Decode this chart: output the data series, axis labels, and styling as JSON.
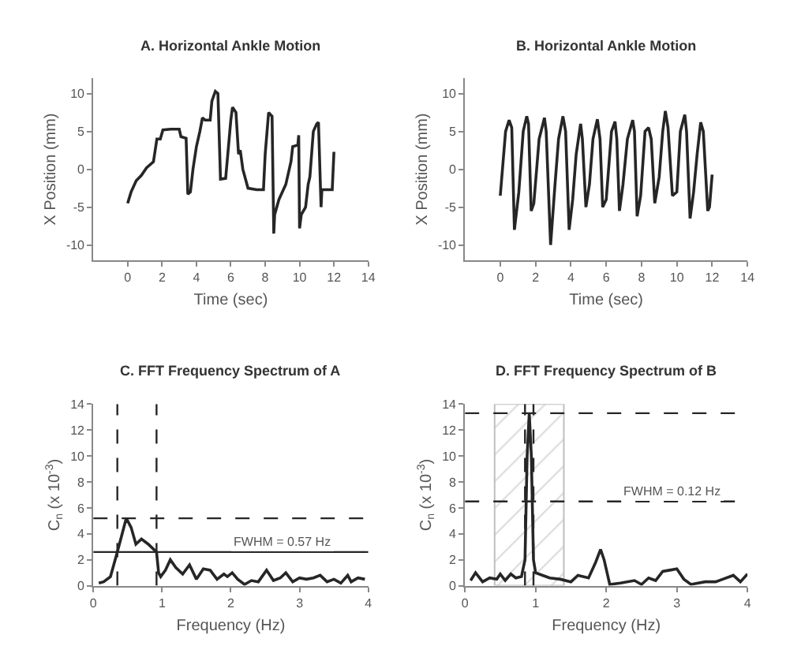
{
  "chart_data": [
    {
      "type": "line",
      "title": "A. Horizontal Ankle Motion",
      "xlabel": "Time (sec)",
      "ylabel": "X Position (mm)",
      "series": [
        {
          "color": "#262626",
          "x": [
            0,
            0.2,
            0.5,
            0.8,
            1.1,
            1.5,
            1.7,
            1.9,
            2.05,
            2.5,
            3.0,
            3.1,
            3.4,
            3.5,
            3.65,
            3.8,
            4.0,
            4.2,
            4.35,
            4.5,
            4.8,
            4.9,
            5.1,
            5.25,
            5.4,
            5.7,
            6.0,
            6.1,
            6.3,
            6.45,
            6.55,
            6.7,
            7.0,
            7.5,
            7.9,
            8.0,
            8.2,
            8.4,
            8.5,
            8.55,
            8.8,
            9.2,
            9.5,
            9.6,
            9.9,
            9.95,
            10.0,
            10.1,
            10.35,
            10.5,
            10.6,
            10.8,
            11.0,
            11.1,
            11.25,
            11.3,
            11.9,
            12.0
          ],
          "values": [
            -4.5,
            -3,
            -1.5,
            -0.8,
            0.2,
            1,
            4,
            4,
            5.2,
            5.3,
            5.3,
            4.3,
            4.1,
            -3.3,
            -3,
            0,
            3,
            5,
            6.8,
            6.5,
            6.5,
            9,
            10.3,
            10,
            -1.3,
            -1.2,
            6.5,
            8.2,
            7.5,
            2,
            2.5,
            0,
            -2.5,
            -2.7,
            -2.7,
            2,
            7.5,
            7,
            -8.5,
            -6,
            -4,
            -2,
            1,
            3,
            3.2,
            4.5,
            -7.8,
            -6,
            -5,
            -2,
            -1,
            5,
            6,
            6.2,
            -5,
            -2.7,
            -2.7,
            2.3
          ]
        }
      ],
      "xlim": [
        -2,
        14
      ],
      "xticks": [
        0,
        2,
        4,
        6,
        8,
        10,
        12,
        14
      ],
      "ylim": [
        -12,
        12
      ],
      "yticks": [
        -10,
        -5,
        0,
        5,
        10
      ]
    },
    {
      "type": "line",
      "title": "B. Horizontal Ankle Motion",
      "xlabel": "Time (sec)",
      "ylabel": "X Position (mm)",
      "series": [
        {
          "color": "#262626",
          "x": [
            0,
            0.3,
            0.5,
            0.65,
            0.8,
            1.05,
            1.3,
            1.5,
            1.6,
            1.75,
            1.9,
            2.2,
            2.5,
            2.6,
            2.85,
            3.1,
            3.3,
            3.55,
            3.7,
            3.9,
            4.1,
            4.3,
            4.55,
            4.65,
            4.85,
            5.05,
            5.25,
            5.5,
            5.65,
            5.8,
            6.0,
            6.3,
            6.5,
            6.6,
            6.75,
            6.95,
            7.2,
            7.5,
            7.6,
            7.75,
            7.95,
            8.2,
            8.4,
            8.55,
            8.75,
            9.0,
            9.2,
            9.35,
            9.5,
            9.75,
            10.0,
            10.2,
            10.45,
            10.55,
            10.75,
            10.95,
            11.15,
            11.35,
            11.5,
            11.75,
            11.85,
            12.0
          ],
          "values": [
            -3.5,
            5,
            6.5,
            5.5,
            -8,
            -3,
            5,
            7,
            6,
            -5.5,
            -4.5,
            4,
            6.8,
            5,
            -10,
            -2,
            4,
            7,
            5,
            -8,
            -4,
            2,
            6,
            4,
            -5,
            -2,
            4,
            6.6,
            4,
            -5,
            -4,
            5,
            6.3,
            4,
            -5.5,
            -2,
            4,
            6.5,
            5,
            -6.2,
            -3.5,
            5,
            5.5,
            4,
            -4.5,
            -1,
            5,
            7.7,
            5.5,
            -3.5,
            -3,
            5,
            7.2,
            5,
            -6.5,
            -3,
            2,
            6.2,
            5,
            -5.5,
            -5,
            -0.7
          ]
        }
      ],
      "xlim": [
        -2,
        14
      ],
      "xticks": [
        0,
        2,
        4,
        6,
        8,
        10,
        12,
        14
      ],
      "ylim": [
        -12,
        12
      ],
      "yticks": [
        -10,
        -5,
        0,
        5,
        10
      ]
    },
    {
      "type": "line",
      "title": "C. FFT Frequency Spectrum of A",
      "xlabel": "Frequency (Hz)",
      "ylabel": "C$_{n}$ (x 10$^{-3}$)",
      "series": [
        {
          "color": "#262626",
          "x": [
            0.08,
            0.15,
            0.25,
            0.35,
            0.43,
            0.48,
            0.55,
            0.62,
            0.7,
            0.8,
            0.92,
            0.95,
            0.98,
            1.05,
            1.12,
            1.2,
            1.3,
            1.4,
            1.5,
            1.6,
            1.7,
            1.8,
            1.9,
            1.95,
            2.02,
            2.1,
            2.2,
            2.3,
            2.4,
            2.52,
            2.62,
            2.72,
            2.8,
            2.9,
            3.0,
            3.1,
            3.2,
            3.3,
            3.4,
            3.5,
            3.6,
            3.7,
            3.75,
            3.85,
            3.95
          ],
          "values": [
            0.2,
            0.3,
            0.7,
            2.6,
            4.2,
            5.2,
            4.5,
            3.2,
            3.6,
            3.2,
            2.6,
            1.0,
            0.7,
            1.2,
            2.0,
            1.4,
            0.9,
            1.6,
            0.5,
            1.3,
            1.2,
            0.5,
            0.9,
            0.7,
            1.0,
            0.5,
            0.1,
            0.4,
            0.3,
            1.2,
            0.4,
            0.6,
            1.0,
            0.3,
            0.6,
            0.5,
            0.6,
            0.8,
            0.3,
            0.5,
            0.2,
            0.8,
            0.3,
            0.6,
            0.5
          ]
        }
      ],
      "xlim": [
        0,
        4
      ],
      "xticks": [
        0,
        1,
        2,
        3,
        4
      ],
      "ylim": [
        0,
        14
      ],
      "yticks": [
        0,
        2,
        4,
        6,
        8,
        10,
        12,
        14
      ],
      "ref_lines": [
        {
          "axis": "y",
          "value": 5.2,
          "line_style": "dashed",
          "color": "#262626"
        },
        {
          "axis": "y",
          "value": 2.6,
          "line_style": "solid",
          "color": "#262626"
        },
        {
          "axis": "x",
          "value": 0.35,
          "line_style": "dashed",
          "color": "#262626"
        },
        {
          "axis": "x",
          "value": 0.92,
          "line_style": "dashed",
          "color": "#262626"
        }
      ],
      "annotations": [
        {
          "text": "FWHM = 0.57 Hz",
          "x": 2.0,
          "y": 2.6
        }
      ]
    },
    {
      "type": "line",
      "title": "D. FFT Frequency Spectrum of B",
      "xlabel": "Frequency (Hz)",
      "ylabel": "C$_{n}$ (x 10$^{-3}$)",
      "series": [
        {
          "color": "#262626",
          "x": [
            0.08,
            0.15,
            0.25,
            0.35,
            0.45,
            0.5,
            0.57,
            0.65,
            0.72,
            0.8,
            0.85,
            0.88,
            0.91,
            0.94,
            0.97,
            1.0,
            1.1,
            1.2,
            1.35,
            1.5,
            1.6,
            1.75,
            1.85,
            1.92,
            1.97,
            2.05,
            2.2,
            2.4,
            2.5,
            2.6,
            2.7,
            2.8,
            2.9,
            3.0,
            3.1,
            3.2,
            3.4,
            3.55,
            3.65,
            3.8,
            3.9,
            4.0
          ],
          "values": [
            0.4,
            1.0,
            0.3,
            0.6,
            0.5,
            0.9,
            0.4,
            0.9,
            0.6,
            0.7,
            2,
            10,
            13.3,
            10,
            2,
            1.0,
            0.8,
            0.6,
            0.5,
            0.3,
            0.8,
            0.6,
            1.8,
            2.8,
            2,
            0.1,
            0.2,
            0.4,
            0.1,
            0.6,
            0.4,
            1.1,
            1.2,
            1.3,
            0.5,
            0.1,
            0.3,
            0.3,
            0.5,
            0.8,
            0.3,
            0.9
          ]
        }
      ],
      "xlim": [
        0,
        4
      ],
      "xticks": [
        0,
        1,
        2,
        3,
        4
      ],
      "ylim": [
        0,
        14
      ],
      "yticks": [
        0,
        2,
        4,
        6,
        8,
        10,
        12,
        14
      ],
      "bands": [
        {
          "axis": "x",
          "from": 0.42,
          "to": 1.4,
          "color": "#bfbfbf"
        }
      ],
      "ref_lines": [
        {
          "axis": "y",
          "value": 13.3,
          "line_style": "dashed",
          "color": "#262626"
        },
        {
          "axis": "y",
          "value": 6.5,
          "line_style": "dashed",
          "color": "#262626"
        },
        {
          "axis": "x",
          "value": 0.85,
          "line_style": "dashed",
          "color": "#262626"
        },
        {
          "axis": "x",
          "value": 0.97,
          "line_style": "dashed",
          "color": "#262626"
        }
      ],
      "annotations": [
        {
          "text": "FWHM = 0.12 Hz",
          "x": 2.2,
          "y": 6.5
        }
      ]
    }
  ]
}
